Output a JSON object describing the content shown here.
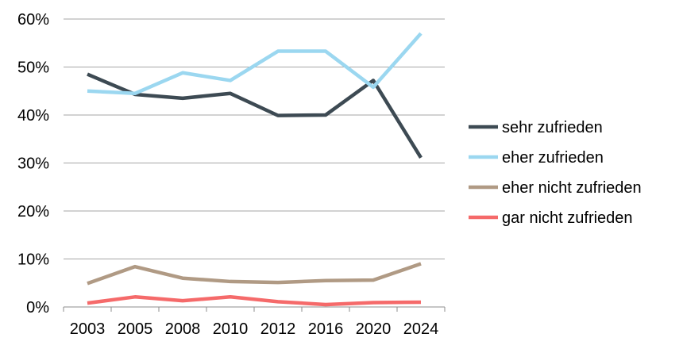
{
  "chart_data": {
    "type": "line",
    "title": "",
    "xlabel": "",
    "ylabel": "",
    "categories": [
      "2003",
      "2005",
      "2008",
      "2010",
      "2012",
      "2016",
      "2020",
      "2024"
    ],
    "y_ticks": [
      "0%",
      "10%",
      "20%",
      "30%",
      "40%",
      "50%",
      "60%"
    ],
    "ylim": [
      0,
      60
    ],
    "y_unit": "%",
    "grid": "horizontal",
    "legend_position": "right",
    "series": [
      {
        "name": "sehr zufrieden",
        "color": "#3d4a53",
        "values": [
          48.5,
          44.3,
          43.5,
          44.5,
          39.9,
          40.0,
          47.2,
          31.1
        ]
      },
      {
        "name": "eher zufrieden",
        "color": "#9bd7f0",
        "values": [
          45.0,
          44.5,
          48.8,
          47.2,
          53.3,
          53.3,
          45.8,
          57.0
        ]
      },
      {
        "name": "eher nicht zufrieden",
        "color": "#b09a84",
        "values": [
          4.9,
          8.4,
          6.0,
          5.3,
          5.1,
          5.5,
          5.6,
          9.0
        ]
      },
      {
        "name": "gar nicht zufrieden",
        "color": "#f56a6a",
        "values": [
          0.8,
          2.1,
          1.3,
          2.1,
          1.1,
          0.5,
          0.9,
          1.0
        ]
      }
    ]
  }
}
